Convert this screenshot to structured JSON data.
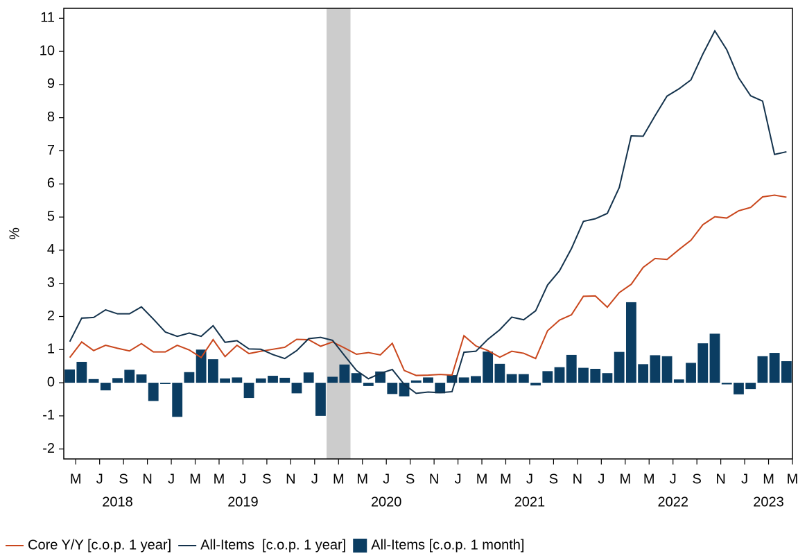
{
  "chart_data": {
    "type": "combo",
    "y_label": "%",
    "ylim": [
      -2.3,
      11.3
    ],
    "yticks": [
      -2,
      -1,
      0,
      1,
      2,
      3,
      4,
      5,
      6,
      7,
      8,
      9,
      10,
      11
    ],
    "categories": [
      null,
      "M",
      null,
      "J",
      null,
      "S",
      null,
      "N",
      null,
      "J",
      null,
      "M",
      null,
      "M",
      null,
      "J",
      null,
      "S",
      null,
      "N",
      null,
      "J",
      null,
      "M",
      null,
      "M",
      null,
      "J",
      null,
      "S",
      null,
      "N",
      null,
      "J",
      null,
      "M",
      null,
      "M",
      null,
      "J",
      null,
      "S",
      null,
      "N",
      null,
      "J",
      null,
      "M",
      null,
      "M",
      null,
      "J",
      null,
      "S",
      null,
      "N",
      null,
      "J",
      null,
      "M",
      null,
      "M"
    ],
    "x_groups": [
      {
        "label": "2018",
        "count": 9
      },
      {
        "label": "2019",
        "count": 12
      },
      {
        "label": "2020",
        "count": 12
      },
      {
        "label": "2021",
        "count": 12
      },
      {
        "label": "2022",
        "count": 12
      },
      {
        "label": "2023",
        "count": 4
      }
    ],
    "shade_range": [
      22,
      24
    ],
    "shade_color": "#cccccc",
    "series": [
      {
        "name": "Core Y/Y [c.o.p. 1 year]",
        "type": "line",
        "color": "#c9461c",
        "values": [
          0.76,
          1.23,
          0.97,
          1.13,
          1.04,
          0.96,
          1.18,
          0.93,
          0.93,
          1.13,
          0.99,
          0.76,
          1.3,
          0.79,
          1.13,
          0.88,
          0.95,
          1.01,
          1.07,
          1.31,
          1.3,
          1.1,
          1.23,
          1.05,
          0.86,
          0.91,
          0.84,
          1.19,
          0.37,
          0.22,
          0.23,
          0.25,
          0.23,
          1.42,
          1.11,
          0.97,
          0.77,
          0.95,
          0.89,
          0.73,
          1.57,
          1.89,
          2.05,
          2.61,
          2.62,
          2.28,
          2.72,
          2.97,
          3.48,
          3.75,
          3.72,
          4.02,
          4.3,
          4.77,
          5.01,
          4.97,
          5.19,
          5.29,
          5.61,
          5.66,
          5.6,
          null
        ]
      },
      {
        "name": "All-Items  [c.o.p. 1 year]",
        "type": "line",
        "color": "#13324c",
        "values": [
          1.24,
          1.95,
          1.97,
          2.2,
          2.08,
          2.08,
          2.29,
          1.92,
          1.53,
          1.4,
          1.5,
          1.4,
          1.72,
          1.22,
          1.27,
          1.02,
          1.01,
          0.85,
          0.73,
          0.97,
          1.33,
          1.37,
          1.28,
          0.82,
          0.37,
          0.12,
          0.28,
          0.4,
          -0.05,
          -0.32,
          -0.28,
          -0.3,
          -0.27,
          0.92,
          0.95,
          1.31,
          1.6,
          1.98,
          1.9,
          2.17,
          2.95,
          3.38,
          4.05,
          4.87,
          4.95,
          5.11,
          5.89,
          7.45,
          7.44,
          8.06,
          8.65,
          8.87,
          9.14,
          9.92,
          10.62,
          10.05,
          9.2,
          8.66,
          8.5,
          6.89,
          6.97,
          null
        ]
      },
      {
        "name": "All-Items [c.o.p. 1 month]",
        "type": "bar",
        "color": "#0b3d62",
        "values": [
          0.4,
          0.63,
          0.11,
          -0.23,
          0.14,
          0.39,
          0.25,
          -0.55,
          -0.04,
          -1.03,
          0.32,
          1.0,
          0.71,
          0.13,
          0.16,
          -0.46,
          0.13,
          0.21,
          0.15,
          -0.32,
          0.31,
          -1.0,
          0.18,
          0.55,
          0.29,
          -0.1,
          0.34,
          -0.34,
          -0.41,
          0.07,
          0.16,
          -0.32,
          0.23,
          0.16,
          0.2,
          0.94,
          0.57,
          0.26,
          0.26,
          -0.08,
          0.35,
          0.47,
          0.84,
          0.45,
          0.42,
          0.29,
          0.93,
          2.43,
          0.56,
          0.83,
          0.8,
          0.1,
          0.6,
          1.19,
          1.48,
          -0.05,
          -0.35,
          -0.19,
          0.8,
          0.9,
          0.65,
          null
        ]
      }
    ]
  }
}
